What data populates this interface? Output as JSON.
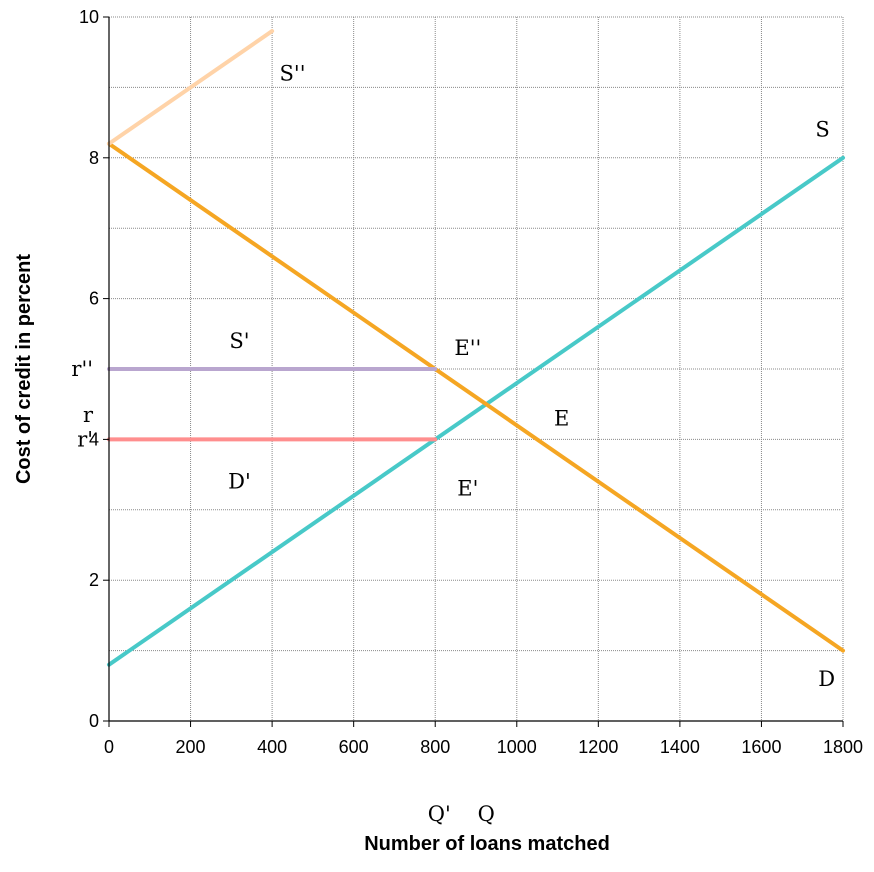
{
  "chart_data": {
    "type": "line",
    "xlabel": "Number of loans matched",
    "ylabel": "Cost of credit in percent",
    "xlim": [
      0,
      1800
    ],
    "ylim": [
      0,
      10
    ],
    "x_ticks": [
      0,
      200,
      400,
      600,
      800,
      1000,
      1200,
      1400,
      1600,
      1800
    ],
    "y_ticks": [
      0,
      2,
      4,
      6,
      8,
      10
    ],
    "grid": true,
    "series": [
      {
        "name": "S",
        "color": "#48C9C8",
        "x": [
          0,
          1800
        ],
        "y": [
          0.8,
          8.0
        ]
      },
      {
        "name": "D",
        "color": "#F5A623",
        "x": [
          0,
          1800
        ],
        "y": [
          8.2,
          1.0
        ]
      },
      {
        "name": "S''",
        "color": "#FFD3A8",
        "x": [
          0,
          400
        ],
        "y": [
          8.2,
          9.8
        ]
      },
      {
        "name": "S'",
        "color": "#B9A6CF",
        "x": [
          0,
          800
        ],
        "y": [
          5.0,
          5.0
        ]
      },
      {
        "name": "D'",
        "color": "#FF8E8E",
        "x": [
          0,
          800
        ],
        "y": [
          4.0,
          4.0
        ]
      }
    ],
    "annotations": [
      {
        "text": "S''",
        "x": 450,
        "y": 9.2
      },
      {
        "text": "S",
        "x": 1750,
        "y": 8.4
      },
      {
        "text": "S'",
        "x": 320,
        "y": 5.4
      },
      {
        "text": "E''",
        "x": 880,
        "y": 5.3
      },
      {
        "text": "E",
        "x": 1110,
        "y": 4.3
      },
      {
        "text": "D'",
        "x": 320,
        "y": 3.4
      },
      {
        "text": "E'",
        "x": 880,
        "y": 3.3
      },
      {
        "text": "D",
        "x": 1760,
        "y": 0.6
      }
    ],
    "y_side_labels": [
      {
        "text": "r''",
        "y": 5.0
      },
      {
        "text": "r",
        "y": 4.35
      },
      {
        "text": "r'",
        "y": 4.0
      }
    ],
    "x_below_labels": [
      {
        "text": "Q'",
        "x": 810
      },
      {
        "text": "Q",
        "x": 925
      }
    ]
  }
}
